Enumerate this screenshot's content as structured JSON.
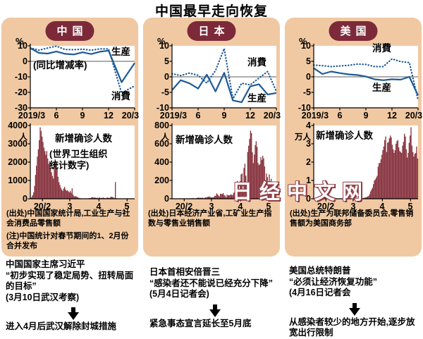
{
  "page": {
    "title": "中国最早走向恢复",
    "watermark": "日经中文网"
  },
  "colors": {
    "line": "#1d5a96",
    "bar": "#8c3b46",
    "panel_bg": "#f0c9a3",
    "badge_bg": "#7c2a3a"
  },
  "panels": [
    {
      "badge": "中国",
      "pct": "%",
      "line_chart_labels": {
        "production": "生産",
        "consumption": "消費",
        "note": "(同比增减率)"
      },
      "bar_chart_labels": {
        "title": "新增确诊人数",
        "who_note": "(世界卫生组织\n统计数字)"
      },
      "source": "(出处)中国国家统计局,工业生产与社会消费品零售额",
      "note": "(注)中国统计对春节期间的1、2月份合并发布"
    },
    {
      "badge": "日本",
      "pct": "%",
      "line_chart_labels": {
        "production": "生産",
        "consumption": "消費"
      },
      "bar_chart_labels": {
        "title": "新增确诊人数"
      },
      "source": "(出处)日本经济产业省,工矿业生产指数与零售业销售额"
    },
    {
      "badge": "美国",
      "pct": "%",
      "line_chart_labels": {
        "production": "生産",
        "consumption": "消費"
      },
      "bar_chart_labels": {
        "title": "新增确诊人数"
      },
      "source": "(出处)生产为联邦储备委员会,零售销售额为美国商务部"
    }
  ],
  "footnotes": [
    {
      "who": "中国国家主席习近平",
      "quote": "“初步实现了稳定局势、扭转局面的目标”",
      "source": "(3月10日武汉考察)",
      "result": "进入4月后武汉解除封城措施"
    },
    {
      "who": "日本首相安倍晋三",
      "quote": "“感染者还不能说已经充分下降”",
      "source": "(5月4日记者会)",
      "result": "紧急事态宣言延长至5月底"
    },
    {
      "who": "美国总统特朗普",
      "quote": "“必须让经济恢复功能”",
      "source": "(4月16日记者会",
      "result": "从感染者较少的地方开始,逐步放宽出行限制"
    }
  ],
  "chart_data": [
    {
      "id": "china_line",
      "type": "line",
      "title": "中国 (同比增减率)",
      "ylabel": "%",
      "ylim": [
        -30,
        10
      ],
      "yticks": [
        10,
        0,
        -10,
        -20,
        -30
      ],
      "zero_line": true,
      "xmax": 12,
      "xticks": [
        {
          "f": 0,
          "label": "2019/3"
        },
        {
          "f": 0.25,
          "label": "6"
        },
        {
          "f": 0.5,
          "label": "9"
        },
        {
          "f": 0.75,
          "label": "12"
        },
        {
          "f": 1,
          "label": "20/3"
        }
      ],
      "series": [
        {
          "name": "生産",
          "style": "solid",
          "x": [
            0,
            1,
            2,
            3,
            4,
            5,
            6,
            7,
            8,
            9,
            10.5,
            12
          ],
          "values": [
            8.5,
            5.4,
            5.0,
            6.3,
            4.8,
            4.4,
            5.8,
            4.7,
            6.2,
            6.9,
            -13.5,
            -1.1
          ]
        },
        {
          "name": "消費",
          "style": "dotted",
          "x": [
            0,
            1,
            2,
            3,
            4,
            5,
            6,
            7,
            8,
            9,
            10.5,
            12
          ],
          "values": [
            8.7,
            7.2,
            8.6,
            9.8,
            7.6,
            7.5,
            7.8,
            7.2,
            8.0,
            8.0,
            -20.5,
            -15.8
          ]
        }
      ]
    },
    {
      "id": "japan_line",
      "type": "line",
      "title": "日本 (同比增减率)",
      "ylabel": "%",
      "ylim": [
        -10,
        10
      ],
      "yticks": [
        10,
        5,
        0,
        -5,
        -10
      ],
      "zero_line": true,
      "xmax": 12,
      "xticks": [
        {
          "f": 0,
          "label": "2019/3"
        },
        {
          "f": 0.25,
          "label": "6"
        },
        {
          "f": 0.5,
          "label": "9"
        },
        {
          "f": 0.75,
          "label": "12"
        },
        {
          "f": 1,
          "label": "20/3"
        }
      ],
      "series": [
        {
          "name": "生産",
          "style": "solid",
          "x": [
            0,
            1,
            2,
            3,
            4,
            5,
            6,
            7,
            8,
            9,
            10,
            11,
            12
          ],
          "values": [
            -4.3,
            -1.1,
            -2.1,
            -3.8,
            0.7,
            -4.7,
            1.3,
            -7.6,
            -8.2,
            -3.1,
            -2.4,
            -5.7,
            -5.2
          ]
        },
        {
          "name": "消費",
          "style": "dotted",
          "x": [
            0,
            1,
            2,
            3,
            4,
            5,
            6,
            7,
            8,
            9,
            10,
            11,
            12
          ],
          "values": [
            1.0,
            0.4,
            1.2,
            0.5,
            -2.0,
            2.0,
            9.1,
            -7.1,
            -2.1,
            -2.6,
            -0.4,
            1.7,
            -4.7
          ]
        }
      ]
    },
    {
      "id": "us_line",
      "type": "line",
      "title": "美国 (同比增减率)",
      "ylabel": "%",
      "ylim": [
        -10,
        10
      ],
      "yticks": [
        10,
        5,
        0,
        -5,
        -10
      ],
      "zero_line": true,
      "xmax": 12,
      "xticks": [
        {
          "f": 0,
          "label": "2019/3"
        },
        {
          "f": 0.25,
          "label": "6"
        },
        {
          "f": 0.5,
          "label": "9"
        },
        {
          "f": 0.75,
          "label": "12"
        },
        {
          "f": 1,
          "label": "20/3"
        }
      ],
      "series": [
        {
          "name": "生産",
          "style": "solid",
          "x": [
            0,
            1,
            2,
            3,
            4,
            5,
            6,
            7,
            8,
            9,
            10,
            11,
            12
          ],
          "values": [
            2.8,
            0.9,
            1.7,
            1.2,
            0.8,
            0.6,
            0.1,
            -0.8,
            -1.1,
            -0.8,
            -0.9,
            0.0,
            -6.0
          ]
        },
        {
          "name": "消費",
          "style": "dotted",
          "x": [
            0,
            1,
            2,
            3,
            4,
            5,
            6,
            7,
            8,
            9,
            10,
            11,
            12
          ],
          "values": [
            3.8,
            3.6,
            3.3,
            3.5,
            3.7,
            4.1,
            4.0,
            3.3,
            3.3,
            5.8,
            4.9,
            4.6,
            -7.5
          ]
        }
      ]
    },
    {
      "id": "china_bars",
      "type": "bar",
      "title": "新增确诊人数 (世界卫生组织统计数字)",
      "yunit": "人",
      "ylim": [
        0,
        4000
      ],
      "yticks": [
        4000,
        3000,
        2000,
        1000,
        0
      ],
      "xticks": [
        {
          "f": 0.117,
          "label": "20/2"
        },
        {
          "f": 0.378,
          "label": "3"
        },
        {
          "f": 0.658,
          "label": "4"
        },
        {
          "f": 0.928,
          "label": "5"
        }
      ],
      "values": [
        50,
        100,
        200,
        350,
        700,
        1300,
        1800,
        2300,
        2700,
        3200,
        3900,
        3700,
        3400,
        3100,
        2800,
        2600,
        2400,
        2600,
        2200,
        1900,
        2050,
        1700,
        1450,
        1250,
        1100,
        2000,
        2150,
        1900,
        1650,
        1200,
        900,
        750,
        600,
        500,
        420,
        550,
        650,
        500,
        430,
        460,
        400,
        350,
        430,
        330,
        570,
        220,
        140,
        120,
        150,
        100,
        90,
        45,
        40,
        25,
        20,
        15,
        20,
        10,
        15,
        25,
        15,
        15,
        35,
        40,
        45,
        80,
        80,
        55,
        70,
        55,
        45,
        55,
        30,
        80,
        35,
        50,
        35,
        70,
        30,
        40,
        30,
        60,
        65,
        40,
        45,
        100,
        110,
        90,
        55,
        45,
        910,
        30,
        15,
        10,
        8,
        10,
        6,
        5,
        10,
        5,
        5,
        5,
        20,
        5,
        10,
        5,
        15,
        5,
        3,
        3,
        2
      ]
    },
    {
      "id": "japan_bars",
      "type": "bar",
      "title": "新增确诊人数",
      "yunit": "人",
      "ylim": [
        0,
        800
      ],
      "yticks": [
        800,
        600,
        400,
        200,
        0
      ],
      "xticks": [
        {
          "f": 0.117,
          "label": "20/2"
        },
        {
          "f": 0.378,
          "label": "3"
        },
        {
          "f": 0.658,
          "label": "4"
        },
        {
          "f": 0.928,
          "label": "5"
        }
      ],
      "values": [
        0,
        0,
        0,
        0,
        0,
        0,
        0,
        1,
        0,
        2,
        1,
        2,
        2,
        3,
        2,
        0,
        4,
        2,
        1,
        0,
        6,
        4,
        8,
        2,
        1,
        5,
        8,
        12,
        14,
        8,
        12,
        9,
        12,
        5,
        10,
        15,
        12,
        20,
        22,
        24,
        20,
        14,
        15,
        14,
        18,
        33,
        31,
        59,
        47,
        33,
        26,
        54,
        54,
        51,
        62,
        39,
        34,
        15,
        44,
        39,
        36,
        39,
        49,
        42,
        39,
        65,
        71,
        93,
        96,
        194,
        173,
        87,
        193,
        266,
        277,
        89,
        336,
        383,
        251,
        87,
        511,
        579,
        654,
        743,
        717,
        507,
        390,
        482,
        585,
        628,
        566,
        390,
        367,
        378,
        455,
        423,
        469,
        441,
        353,
        203,
        276,
        236,
        193,
        266,
        192,
        218,
        174,
        123,
        105,
        88,
        96
      ]
    },
    {
      "id": "us_bars",
      "type": "bar",
      "title": "新增确诊人数",
      "yunit": "万人",
      "ylim": [
        0,
        4
      ],
      "yticks": [
        4,
        3,
        2,
        1,
        0
      ],
      "xticks": [
        {
          "f": 0.117,
          "label": "20/2"
        },
        {
          "f": 0.378,
          "label": "3"
        },
        {
          "f": 0.658,
          "label": "4"
        },
        {
          "f": 0.928,
          "label": "5"
        }
      ],
      "values": [
        0,
        0,
        0,
        0,
        0,
        0,
        0,
        0,
        0,
        0,
        0,
        0,
        0,
        0,
        0,
        0,
        0,
        0,
        0,
        0,
        0,
        0,
        0,
        0,
        0,
        0,
        0,
        0,
        0,
        0,
        0,
        0,
        0,
        0,
        0,
        0,
        0,
        0,
        0,
        0,
        0,
        0,
        0.001,
        0.002,
        0.002,
        0.003,
        0.004,
        0.006,
        0.008,
        0.01,
        0.02,
        0.03,
        0.04,
        0.05,
        0.06,
        0.08,
        0.1,
        0.12,
        0.16,
        0.25,
        0.4,
        0.5,
        0.6,
        0.8,
        1.0,
        1.05,
        1.15,
        1.25,
        1.75,
        1.95,
        1.95,
        2.15,
        2.4,
        2.65,
        2.85,
        3.2,
        3.4,
        2.55,
        3.05,
        3.1,
        3.3,
        3.45,
        3.35,
        2.95,
        2.7,
        2.5,
        2.65,
        3.0,
        3.15,
        3.2,
        2.8,
        2.6,
        2.55,
        2.5,
        2.9,
        3.1,
        3.55,
        3.4,
        2.7,
        2.25,
        2.5,
        3.05,
        3.45,
        3.9,
        2.9,
        2.55,
        2.3,
        2.45,
        2.5,
        2.85,
        2.2
      ]
    }
  ]
}
